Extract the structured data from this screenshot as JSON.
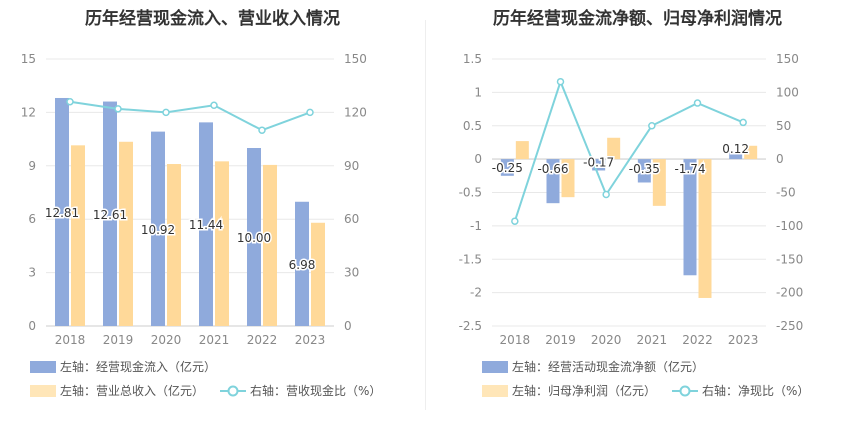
{
  "colors": {
    "blue": "#8faadc",
    "orange": "#ffd999",
    "teal": "#7fd3dc",
    "axis_text": "#888888",
    "grid": "#e8e8e8",
    "title": "#333333"
  },
  "chart_data": [
    {
      "type": "bar",
      "title": "历年经营现金流入、营业收入情况",
      "categories": [
        "2018",
        "2019",
        "2020",
        "2021",
        "2022",
        "2023"
      ],
      "left_axis": {
        "ylim": [
          0,
          15
        ],
        "ticks": [
          "0",
          "3",
          "6",
          "9",
          "12",
          "15"
        ]
      },
      "right_axis": {
        "ylim": [
          0,
          150
        ],
        "ticks": [
          "0",
          "30",
          "60",
          "90",
          "120",
          "150"
        ]
      },
      "series": [
        {
          "name": "左轴：经营现金流入（亿元）",
          "axis": "left",
          "kind": "bar",
          "color": "#8faadc",
          "values": [
            12.81,
            12.61,
            10.92,
            11.44,
            10.0,
            6.98
          ],
          "labels": [
            "12.81",
            "12.61",
            "10.92",
            "11.44",
            "10.00",
            "6.98"
          ]
        },
        {
          "name": "左轴：营业总收入（亿元）",
          "axis": "left",
          "kind": "bar",
          "color": "#ffd999",
          "values": [
            10.15,
            10.35,
            9.1,
            9.25,
            9.05,
            5.8
          ]
        },
        {
          "name": "右轴：营收现金比（%）",
          "axis": "right",
          "kind": "line",
          "color": "#7fd3dc",
          "values": [
            126,
            122,
            120,
            124,
            110,
            120
          ]
        }
      ],
      "grid": true,
      "legend_position": "bottom"
    },
    {
      "type": "bar",
      "title": "历年经营现金流净额、归母净利润情况",
      "categories": [
        "2018",
        "2019",
        "2020",
        "2021",
        "2022",
        "2023"
      ],
      "left_axis": {
        "ylim": [
          -2.5,
          1.5
        ],
        "ticks": [
          "-2.5",
          "-2",
          "-1.5",
          "-1",
          "-0.5",
          "0",
          "0.5",
          "1",
          "1.5"
        ]
      },
      "right_axis": {
        "ylim": [
          -250,
          150
        ],
        "ticks": [
          "-250",
          "-200",
          "-150",
          "-100",
          "-50",
          "0",
          "50",
          "100",
          "150"
        ]
      },
      "series": [
        {
          "name": "左轴：经营活动现金流净额（亿元）",
          "axis": "left",
          "kind": "bar",
          "color": "#8faadc",
          "values": [
            -0.25,
            -0.66,
            -0.17,
            -0.35,
            -1.74,
            0.12
          ],
          "labels": [
            "-0.25",
            "-0.66",
            "-0.17",
            "-0.35",
            "-1.74",
            "0.12"
          ]
        },
        {
          "name": "左轴：归母净利润（亿元）",
          "axis": "left",
          "kind": "bar",
          "color": "#ffd999",
          "values": [
            0.27,
            -0.57,
            0.32,
            -0.7,
            -2.08,
            0.2
          ]
        },
        {
          "name": "右轴：净现比（%）",
          "axis": "right",
          "kind": "line",
          "color": "#7fd3dc",
          "values": [
            -93,
            116,
            -53,
            50,
            84,
            55
          ]
        }
      ],
      "grid": true,
      "legend_position": "bottom"
    }
  ]
}
